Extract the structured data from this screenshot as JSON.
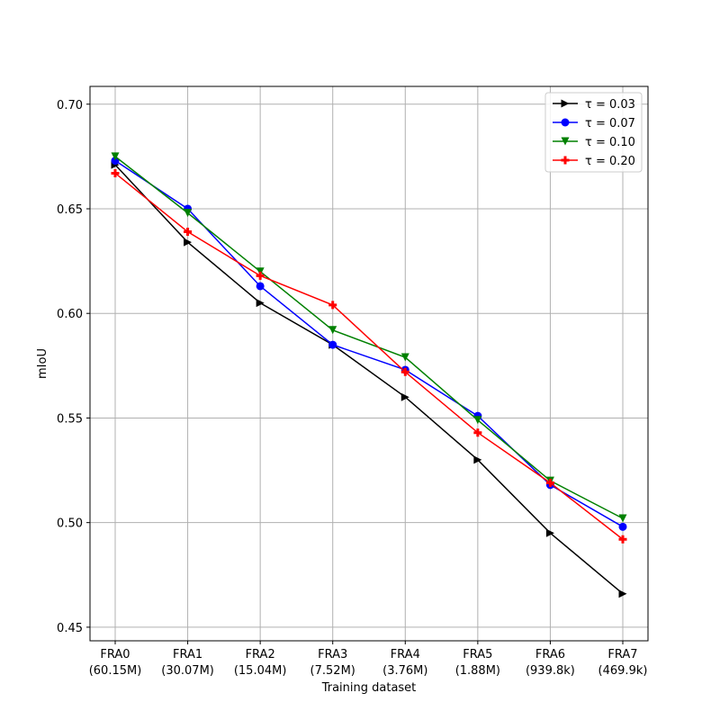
{
  "chart_data": {
    "type": "line",
    "title": "",
    "xlabel": "Training dataset",
    "ylabel": "mIoU",
    "categories": [
      {
        "name": "FRA0",
        "size": "(60.15M)"
      },
      {
        "name": "FRA1",
        "size": "(30.07M)"
      },
      {
        "name": "FRA2",
        "size": "(15.04M)"
      },
      {
        "name": "FRA3",
        "size": "(7.52M)"
      },
      {
        "name": "FRA4",
        "size": "(3.76M)"
      },
      {
        "name": "FRA5",
        "size": "(1.88M)"
      },
      {
        "name": "FRA6",
        "size": "(939.8k)"
      },
      {
        "name": "FRA7",
        "size": "(469.9k)"
      }
    ],
    "ylim": [
      0.4435,
      0.7085
    ],
    "yticks": [
      0.45,
      0.5,
      0.55,
      0.6,
      0.65,
      0.7
    ],
    "ytick_labels": [
      "0.45",
      "0.50",
      "0.55",
      "0.60",
      "0.65",
      "0.70"
    ],
    "grid": true,
    "legend_position": "top-right",
    "series": [
      {
        "name": "τ = 0.03",
        "tau": "0.03",
        "color": "#000000",
        "marker": "triangle-right",
        "values": [
          0.671,
          0.634,
          0.605,
          0.585,
          0.56,
          0.53,
          0.495,
          0.466
        ]
      },
      {
        "name": "τ = 0.07",
        "tau": "0.07",
        "color": "#0000ff",
        "marker": "circle",
        "values": [
          0.673,
          0.65,
          0.613,
          0.585,
          0.573,
          0.551,
          0.518,
          0.498
        ]
      },
      {
        "name": "τ = 0.10",
        "tau": "0.10",
        "color": "#008000",
        "marker": "triangle-down",
        "values": [
          0.675,
          0.648,
          0.62,
          0.592,
          0.579,
          0.549,
          0.52,
          0.502
        ]
      },
      {
        "name": "τ = 0.20",
        "tau": "0.20",
        "color": "#ff0000",
        "marker": "plus",
        "values": [
          0.667,
          0.639,
          0.618,
          0.604,
          0.572,
          0.543,
          0.519,
          0.492
        ]
      }
    ]
  }
}
